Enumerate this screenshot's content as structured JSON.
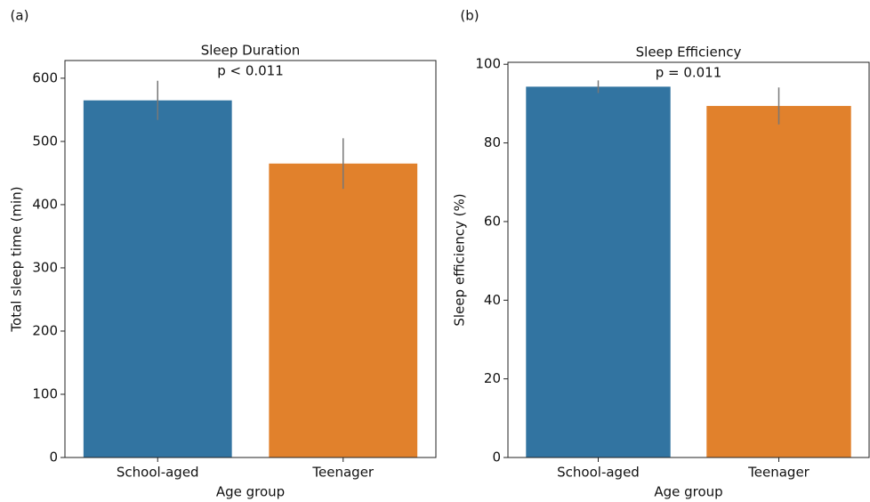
{
  "chart_data": [
    {
      "type": "bar",
      "panel_label": "(a)",
      "title": "Sleep Duration",
      "annotation": "p < 0.011",
      "x_label": "Age group",
      "y_label": "Total sleep time (min)",
      "categories": [
        "School-aged",
        "Teenager"
      ],
      "values": [
        565,
        465
      ],
      "errors": [
        31,
        40
      ],
      "colors": [
        "#3274a1",
        "#e1812c"
      ],
      "error_color": "#777777",
      "ylim": [
        0,
        628
      ],
      "yticks": [
        0,
        100,
        200,
        300,
        400,
        500,
        600
      ]
    },
    {
      "type": "bar",
      "panel_label": "(b)",
      "title": "Sleep Efficiency",
      "annotation": "p = 0.011",
      "x_label": "Age group",
      "y_label": "Sleep efficiency (%)",
      "categories": [
        "School-aged",
        "Teenager"
      ],
      "values": [
        94.3,
        89.4
      ],
      "errors": [
        1.6,
        4.7
      ],
      "colors": [
        "#3274a1",
        "#e1812c"
      ],
      "error_color": "#777777",
      "ylim": [
        0,
        100.5
      ],
      "yticks": [
        0,
        20,
        40,
        60,
        80,
        100
      ]
    }
  ]
}
